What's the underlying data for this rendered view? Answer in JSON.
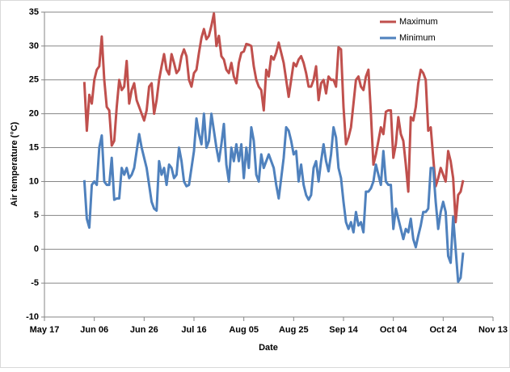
{
  "chart_data": {
    "type": "line",
    "x_label": "Date",
    "y_label": "Air temperature (°C)",
    "x": [
      "Jun 02",
      "Jun 03",
      "Jun 04",
      "Jun 05",
      "Jun 06",
      "Jun 07",
      "Jun 08",
      "Jun 09",
      "Jun 10",
      "Jun 11",
      "Jun 12",
      "Jun 13",
      "Jun 14",
      "Jun 15",
      "Jun 16",
      "Jun 17",
      "Jun 18",
      "Jun 19",
      "Jun 20",
      "Jun 21",
      "Jun 22",
      "Jun 23",
      "Jun 24",
      "Jun 25",
      "Jun 26",
      "Jun 27",
      "Jun 28",
      "Jun 29",
      "Jun 30",
      "Jul 01",
      "Jul 02",
      "Jul 03",
      "Jul 04",
      "Jul 05",
      "Jul 06",
      "Jul 07",
      "Jul 08",
      "Jul 09",
      "Jul 10",
      "Jul 11",
      "Jul 12",
      "Jul 13",
      "Jul 14",
      "Jul 15",
      "Jul 16",
      "Jul 17",
      "Jul 18",
      "Jul 19",
      "Jul 20",
      "Jul 21",
      "Jul 22",
      "Jul 23",
      "Jul 24",
      "Jul 25",
      "Jul 26",
      "Jul 27",
      "Jul 28",
      "Jul 29",
      "Jul 30",
      "Jul 31",
      "Aug 01",
      "Aug 02",
      "Aug 03",
      "Aug 04",
      "Aug 05",
      "Aug 06",
      "Aug 07",
      "Aug 08",
      "Aug 09",
      "Aug 10",
      "Aug 11",
      "Aug 12",
      "Aug 13",
      "Aug 14",
      "Aug 15",
      "Aug 16",
      "Aug 17",
      "Aug 18",
      "Aug 19",
      "Aug 20",
      "Aug 21",
      "Aug 22",
      "Aug 23",
      "Aug 24",
      "Aug 25",
      "Aug 26",
      "Aug 27",
      "Aug 28",
      "Aug 29",
      "Aug 30",
      "Aug 31",
      "Sep 01",
      "Sep 02",
      "Sep 03",
      "Sep 04",
      "Sep 05",
      "Sep 06",
      "Sep 07",
      "Sep 08",
      "Sep 09",
      "Sep 10",
      "Sep 11",
      "Sep 12",
      "Sep 13",
      "Sep 14",
      "Sep 15",
      "Sep 16",
      "Sep 17",
      "Sep 18",
      "Sep 19",
      "Sep 20",
      "Sep 21",
      "Sep 22",
      "Sep 23",
      "Sep 24",
      "Sep 25",
      "Sep 26",
      "Sep 27",
      "Sep 28",
      "Sep 29",
      "Sep 30",
      "Oct 01",
      "Oct 02",
      "Oct 03",
      "Oct 04",
      "Oct 05",
      "Oct 06",
      "Oct 07",
      "Oct 08",
      "Oct 09",
      "Oct 10",
      "Oct 11",
      "Oct 12",
      "Oct 13",
      "Oct 14",
      "Oct 15",
      "Oct 16",
      "Oct 17",
      "Oct 18",
      "Oct 19",
      "Oct 20",
      "Oct 21",
      "Oct 22",
      "Oct 23",
      "Oct 24",
      "Oct 25",
      "Oct 26",
      "Oct 27",
      "Oct 28",
      "Oct 29",
      "Oct 30",
      "Oct 31",
      "Nov 01"
    ],
    "series": [
      {
        "name": "Maximum",
        "color": "#c0504d",
        "values": [
          24.7,
          17.5,
          22.8,
          21.5,
          25,
          26.5,
          27,
          31.4,
          25,
          21,
          20.5,
          15.3,
          16,
          21,
          25,
          23.5,
          24,
          27.8,
          21.5,
          23.5,
          24.5,
          22,
          21,
          20,
          19,
          20.5,
          24,
          24.5,
          20,
          22,
          25,
          27,
          28.8,
          26.5,
          25.8,
          28.8,
          27.5,
          26,
          26.5,
          28.5,
          29.5,
          28.5,
          25,
          24,
          26,
          26.5,
          29,
          31.2,
          32.5,
          31,
          31.5,
          33,
          34.8,
          30,
          31.5,
          28.5,
          28,
          26.5,
          26,
          27.5,
          25.5,
          24.5,
          27.5,
          29,
          29.2,
          30.3,
          30.2,
          30,
          27,
          25,
          24,
          23.5,
          20.5,
          26.5,
          25.5,
          28.5,
          28,
          29,
          30.5,
          29,
          27.5,
          25,
          22.5,
          25,
          27.5,
          27,
          28,
          28.5,
          27.5,
          26,
          24,
          24,
          25,
          27,
          22,
          24.5,
          25,
          23,
          25.5,
          25,
          25,
          24,
          29.8,
          29.5,
          21,
          15.5,
          16.5,
          18,
          21.5,
          25,
          25.5,
          24,
          23.5,
          25.5,
          26.5,
          20,
          12.5,
          14,
          16,
          18,
          17,
          20.3,
          20.5,
          20.5,
          13.5,
          15.5,
          19.5,
          17,
          16,
          12.5,
          8.5,
          19.5,
          19,
          21,
          24.5,
          26.5,
          26,
          25,
          17.5,
          18,
          13.5,
          9.3,
          10.5,
          12,
          11,
          10,
          14.5,
          13,
          10.5,
          4,
          8,
          8.5,
          10.2
        ]
      },
      {
        "name": "Minimum",
        "color": "#4f81bd",
        "values": [
          10.2,
          4.5,
          3.2,
          9.5,
          10,
          9.5,
          15,
          16.8,
          10,
          9.5,
          9.5,
          13.5,
          7.3,
          7.5,
          7.5,
          12,
          11,
          12,
          10.5,
          11,
          12,
          14.5,
          17,
          15,
          13.5,
          12,
          9.5,
          7,
          6,
          5.7,
          13,
          11,
          12,
          9.5,
          12.5,
          12,
          10.5,
          11,
          15,
          13,
          10,
          9.3,
          9.5,
          12,
          14.5,
          19.3,
          17,
          15.5,
          20,
          15,
          16,
          20,
          17.5,
          15,
          13,
          15.5,
          18.5,
          12.5,
          10,
          15,
          13,
          15.5,
          13,
          15.5,
          10.5,
          15,
          12,
          18,
          16,
          11,
          10,
          14,
          12,
          13,
          14,
          13,
          12,
          9.5,
          7.5,
          10.5,
          13.5,
          18,
          17.5,
          16,
          14,
          14.5,
          10,
          12.5,
          9.5,
          8,
          7.3,
          8,
          12,
          13,
          10,
          13,
          15.5,
          13,
          11.5,
          14,
          18,
          16.5,
          12,
          10.5,
          7,
          4,
          3,
          4,
          2.5,
          5.5,
          3.5,
          4,
          2.5,
          8.5,
          8.5,
          9,
          10,
          12.5,
          11,
          9.5,
          14.5,
          10,
          9.5,
          9.5,
          3,
          6,
          4.5,
          3,
          1.5,
          3,
          2.5,
          4.5,
          1.5,
          0.3,
          2,
          3.5,
          5.5,
          5.5,
          6,
          12,
          12,
          7,
          3,
          5.5,
          7,
          5.5,
          -1,
          -2,
          4.8,
          0,
          -4.8,
          -4.2,
          -0.5
        ]
      }
    ],
    "xlim": [
      "May 17",
      "Nov 13"
    ],
    "xticks": [
      "May 17",
      "Jun 06",
      "Jun 26",
      "Jul 16",
      "Aug 05",
      "Aug 25",
      "Sep 14",
      "Oct 04",
      "Oct 24",
      "Nov 13"
    ],
    "ylim": [
      -10,
      35
    ],
    "yticks": [
      -10,
      -5,
      0,
      5,
      10,
      15,
      20,
      25,
      30,
      35
    ],
    "grid": true,
    "legend": "top-right"
  }
}
